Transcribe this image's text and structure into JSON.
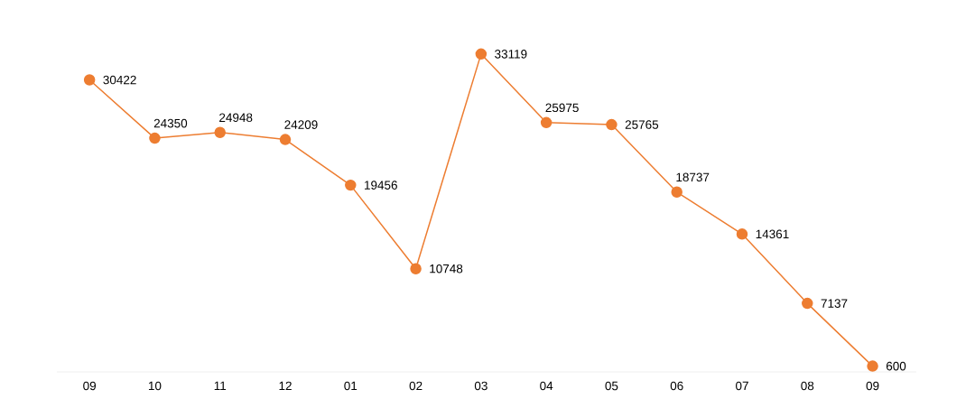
{
  "chart_data": {
    "type": "line",
    "categories": [
      "09",
      "10",
      "11",
      "12",
      "01",
      "02",
      "03",
      "04",
      "05",
      "06",
      "07",
      "08",
      "09"
    ],
    "values": [
      30422,
      24350,
      24948,
      24209,
      19456,
      10748,
      33119,
      25975,
      25765,
      18737,
      14361,
      7137,
      600
    ],
    "color": "#ed7d31",
    "marker": "circle",
    "line_style": "solid",
    "data_labels": true
  }
}
